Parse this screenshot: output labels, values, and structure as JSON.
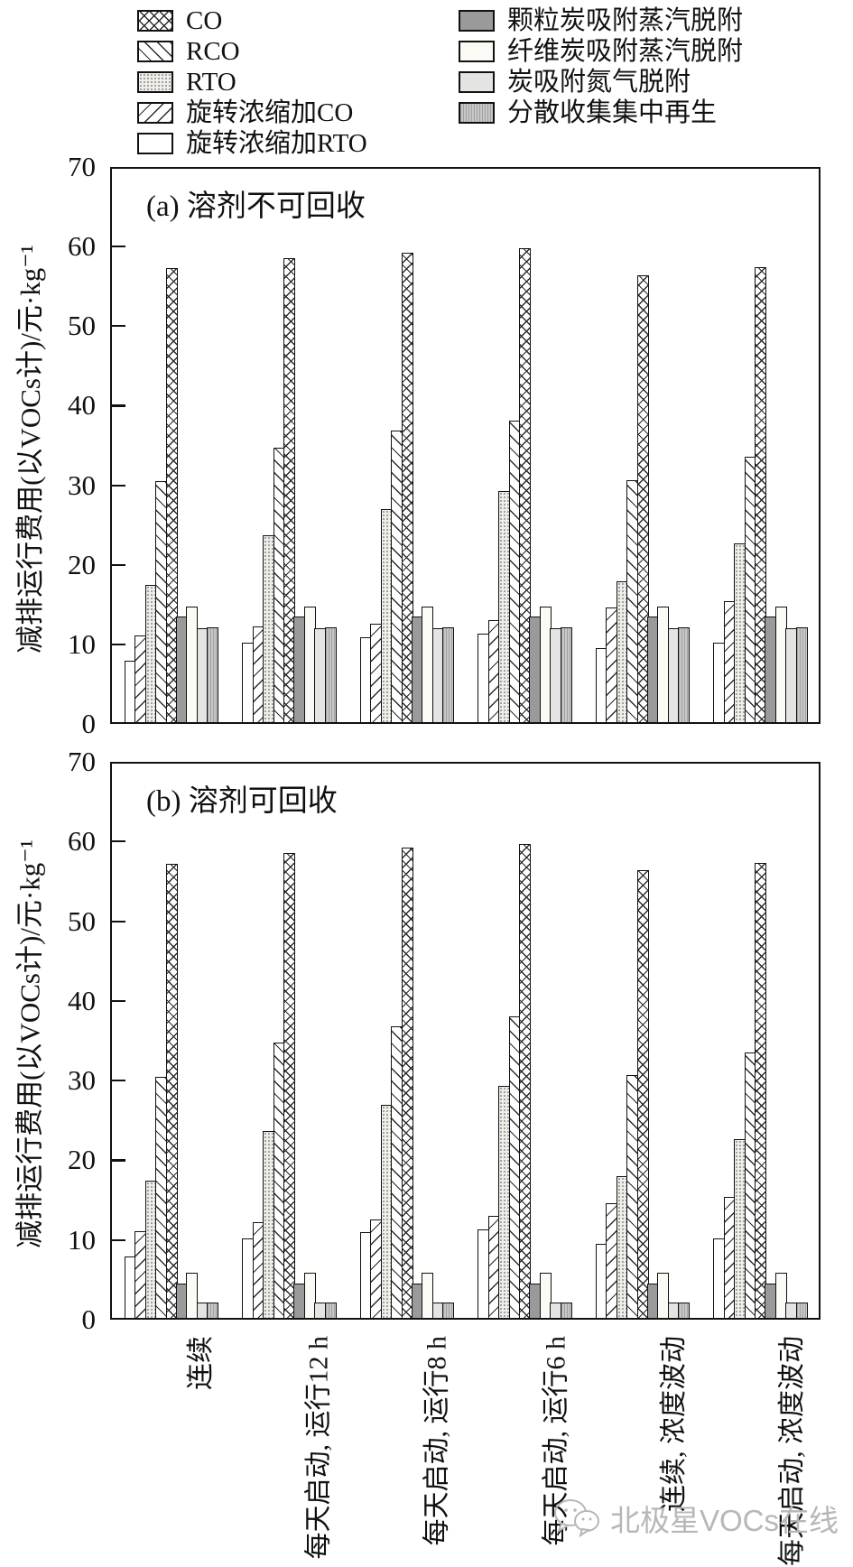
{
  "legend": {
    "items": [
      {
        "label": "CO",
        "pattern": "co"
      },
      {
        "label": "RCO",
        "pattern": "rco"
      },
      {
        "label": "RTO",
        "pattern": "rto"
      },
      {
        "label": "旋转浓缩加CO",
        "pattern": "xco"
      },
      {
        "label": "旋转浓缩加RTO",
        "pattern": "xrto"
      },
      {
        "label": "颗粒炭吸附蒸汽脱附",
        "pattern": "granular"
      },
      {
        "label": "纤维炭吸附蒸汽脱附",
        "pattern": "fiber"
      },
      {
        "label": "炭吸附氮气脱附",
        "pattern": "nitrogen"
      },
      {
        "label": "分散收集集中再生",
        "pattern": "dispersed"
      }
    ]
  },
  "watermark": {
    "text": "北极星VOCs在线"
  },
  "chart_data": [
    {
      "type": "bar",
      "panel_label": "(a) 溶剂不可回收",
      "ylabel": "减排运行费用(以VOCs计)/元·kg⁻¹",
      "ylim": [
        0,
        70
      ],
      "yticks": [
        0,
        10,
        20,
        30,
        40,
        50,
        60,
        70
      ],
      "grid": false,
      "categories": [
        "连续",
        "每天启动, 运行12 h",
        "每天启动, 运行8 h",
        "每天启动, 运行6 h",
        "连续, 浓度波动",
        "每天启动, 浓度波动"
      ],
      "series": [
        {
          "name": "旋转浓缩加RTO",
          "pattern": "xrto",
          "values": [
            7.8,
            10.1,
            10.8,
            11.2,
            9.4,
            10.1
          ]
        },
        {
          "name": "旋转浓缩加CO",
          "pattern": "xco",
          "values": [
            11.0,
            12.1,
            12.5,
            12.9,
            14.5,
            15.3
          ]
        },
        {
          "name": "RTO",
          "pattern": "rto",
          "values": [
            17.4,
            23.7,
            27.0,
            29.3,
            17.9,
            22.6
          ]
        },
        {
          "name": "RCO",
          "pattern": "rco",
          "values": [
            30.5,
            34.8,
            36.9,
            38.2,
            30.7,
            33.6
          ]
        },
        {
          "name": "CO",
          "pattern": "co",
          "values": [
            57.5,
            58.8,
            59.5,
            60.0,
            56.6,
            57.6
          ]
        },
        {
          "name": "颗粒炭吸附蒸汽脱附",
          "pattern": "granular",
          "values": [
            13.4,
            13.4,
            13.4,
            13.4,
            13.4,
            13.4
          ]
        },
        {
          "name": "纤维炭吸附蒸汽脱附",
          "pattern": "fiber",
          "values": [
            14.7,
            14.7,
            14.7,
            14.7,
            14.7,
            14.7
          ]
        },
        {
          "name": "炭吸附氮气脱附",
          "pattern": "nitrogen",
          "values": [
            11.9,
            11.9,
            11.9,
            11.9,
            11.9,
            11.9
          ]
        },
        {
          "name": "分散收集集中再生",
          "pattern": "dispersed",
          "values": [
            12.0,
            12.0,
            12.0,
            12.0,
            12.0,
            12.0
          ]
        }
      ]
    },
    {
      "type": "bar",
      "panel_label": "(b) 溶剂可回收",
      "ylabel": "减排运行费用(以VOCs计)/元·kg⁻¹",
      "ylim": [
        0,
        70
      ],
      "yticks": [
        0,
        10,
        20,
        30,
        40,
        50,
        60,
        70
      ],
      "grid": false,
      "categories": [
        "连续",
        "每天启动, 运行12 h",
        "每天启动, 运行8 h",
        "每天启动, 运行6 h",
        "连续, 浓度波动",
        "每天启动, 浓度波动"
      ],
      "series": [
        {
          "name": "旋转浓缩加RTO",
          "pattern": "xrto",
          "values": [
            7.8,
            10.1,
            10.8,
            11.2,
            9.4,
            10.1
          ]
        },
        {
          "name": "旋转浓缩加CO",
          "pattern": "xco",
          "values": [
            11.0,
            12.1,
            12.5,
            12.9,
            14.5,
            15.3
          ]
        },
        {
          "name": "RTO",
          "pattern": "rto",
          "values": [
            17.4,
            23.7,
            27.0,
            29.3,
            17.9,
            22.6
          ]
        },
        {
          "name": "RCO",
          "pattern": "rco",
          "values": [
            30.5,
            34.8,
            36.9,
            38.2,
            30.7,
            33.6
          ]
        },
        {
          "name": "CO",
          "pattern": "co",
          "values": [
            57.5,
            58.8,
            59.5,
            60.0,
            56.6,
            57.6
          ]
        },
        {
          "name": "颗粒炭吸附蒸汽脱附",
          "pattern": "granular",
          "values": [
            4.4,
            4.4,
            4.4,
            4.4,
            4.4,
            4.4
          ]
        },
        {
          "name": "纤维炭吸附蒸汽脱附",
          "pattern": "fiber",
          "values": [
            5.7,
            5.7,
            5.7,
            5.7,
            5.7,
            5.7
          ]
        },
        {
          "name": "炭吸附氮气脱附",
          "pattern": "nitrogen",
          "values": [
            1.9,
            1.9,
            1.9,
            1.9,
            1.9,
            1.9
          ]
        },
        {
          "name": "分散收集集中再生",
          "pattern": "dispersed",
          "values": [
            2.0,
            2.0,
            2.0,
            2.0,
            2.0,
            2.0
          ]
        }
      ]
    }
  ]
}
